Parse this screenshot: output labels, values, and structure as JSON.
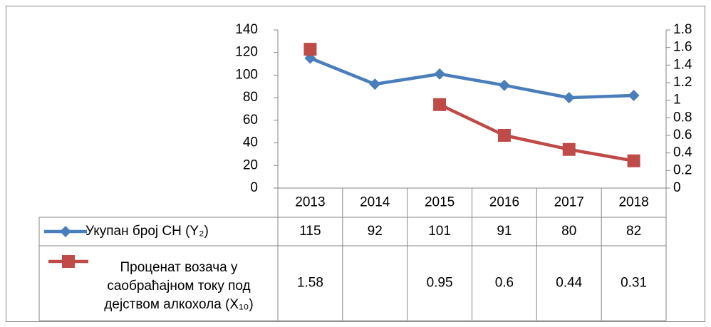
{
  "chart_data": {
    "type": "line",
    "categories": [
      "2013",
      "2014",
      "2015",
      "2016",
      "2017",
      "2018"
    ],
    "series": [
      {
        "name": "Укупан број СН (Y₂)",
        "color": "#4a7ebb",
        "values": [
          115,
          92,
          101,
          91,
          80,
          82
        ]
      },
      {
        "name": "Проценат возача у саобраћајном току под дејством алкохола (X₁₀)",
        "color": "#be4b48",
        "axis": "y2",
        "values": [
          1.58,
          null,
          0.95,
          0.6,
          0.44,
          0.31
        ]
      }
    ],
    "ylim": [
      0,
      140
    ],
    "yticks": [
      0,
      20,
      40,
      60,
      80,
      100,
      120,
      140
    ],
    "y2lim": [
      0,
      1.8
    ],
    "y2ticks": [
      0,
      0.2,
      0.4,
      0.6,
      0.8,
      1,
      1.2,
      1.4,
      1.6,
      1.8
    ],
    "grid": false,
    "data_table": true
  }
}
